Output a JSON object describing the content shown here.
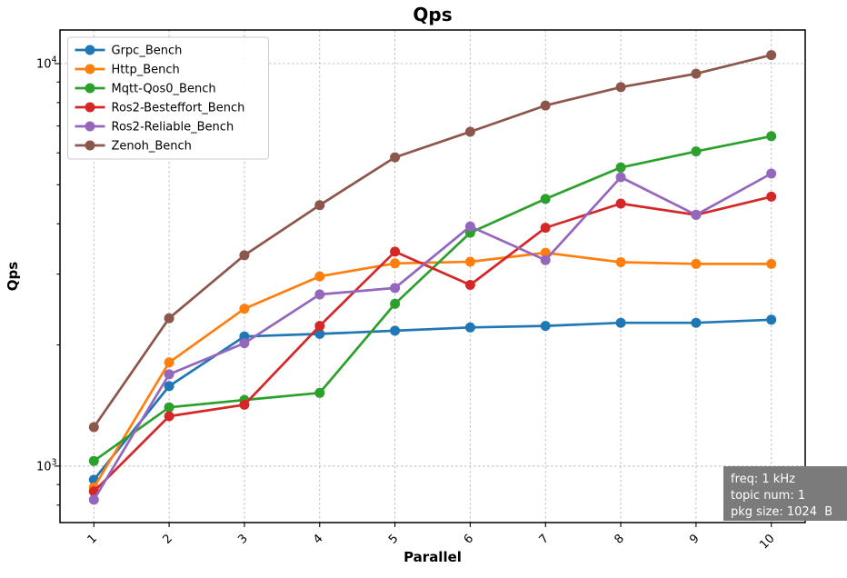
{
  "title": "Qps",
  "title_color": "#1f3d99",
  "chart_data": {
    "type": "line",
    "title": "Qps",
    "xlabel": "Parallel",
    "ylabel": "Qps",
    "yscale": "log",
    "ylim": [
      724,
      12120
    ],
    "xlim": [
      0.55,
      10.45
    ],
    "grid": true,
    "legend_position": "upper left",
    "x": [
      1,
      2,
      3,
      4,
      5,
      6,
      7,
      8,
      9,
      10
    ],
    "y_major_ticks": [
      1000,
      10000
    ],
    "y_major_tick_labels": [
      "10³",
      "10⁴"
    ],
    "series": [
      {
        "name": "Grpc_Bench",
        "color": "#1f77b4",
        "values": [
          925,
          1580,
          2100,
          2130,
          2170,
          2210,
          2230,
          2270,
          2270,
          2310
        ]
      },
      {
        "name": "Http_Bench",
        "color": "#ff7f0e",
        "values": [
          885,
          1810,
          2460,
          2960,
          3190,
          3220,
          3390,
          3210,
          3180,
          3180
        ]
      },
      {
        "name": "Mqtt-Qos0_Bench",
        "color": "#2ca02c",
        "values": [
          1030,
          1400,
          1460,
          1520,
          2530,
          3800,
          4610,
          5520,
          6050,
          6600
        ]
      },
      {
        "name": "Ros2-Besteffort_Bench",
        "color": "#d62728",
        "values": [
          865,
          1330,
          1420,
          2230,
          3410,
          2820,
          3910,
          4490,
          4210,
          4670
        ]
      },
      {
        "name": "Ros2-Reliable_Bench",
        "color": "#9467bd",
        "values": [
          825,
          1690,
          2020,
          2670,
          2770,
          3940,
          3250,
          5220,
          4210,
          5330
        ]
      },
      {
        "name": "Zenoh_Bench",
        "color": "#8c564b",
        "values": [
          1250,
          2330,
          3340,
          4450,
          5850,
          6770,
          7870,
          8740,
          9440,
          10500
        ]
      }
    ],
    "annotation_box": {
      "bg": "#7b7b7b",
      "text_color": "#ffffff",
      "lines": [
        "freq: 1 kHz",
        "topic num: 1",
        "pkg size: 1024  B"
      ]
    }
  }
}
